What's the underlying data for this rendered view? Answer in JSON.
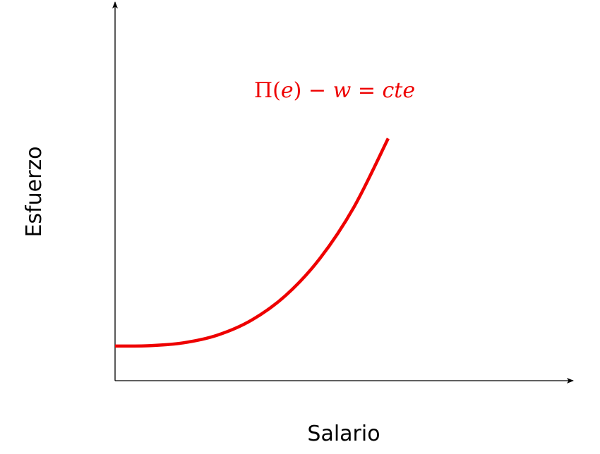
{
  "axes": {
    "x_title": "Salario",
    "y_title": "Esfuerzo"
  },
  "curve": {
    "color": "#ee0000",
    "label": {
      "pi": "Π",
      "paren_open": "(",
      "e": "e",
      "paren_close": ")",
      "minus": " − ",
      "w": "w",
      "equals": " = ",
      "cte": "cte"
    }
  },
  "chart_data": {
    "type": "line",
    "title": "",
    "xlabel": "Salario",
    "ylabel": "Esfuerzo",
    "series": [
      {
        "name": "Π(e) − w = cte",
        "x": [
          0,
          0.5,
          1,
          1.5,
          2,
          2.5,
          3,
          3.5,
          4
        ],
        "y": [
          1.0,
          1.0117,
          1.0938,
          1.3164,
          1.75,
          2.4648,
          3.5312,
          5.0195,
          7.0
        ]
      }
    ],
    "xlim": [
      0,
      6.72
    ],
    "ylim": [
      0,
      11.0
    ],
    "grid": false,
    "legend": "none"
  }
}
